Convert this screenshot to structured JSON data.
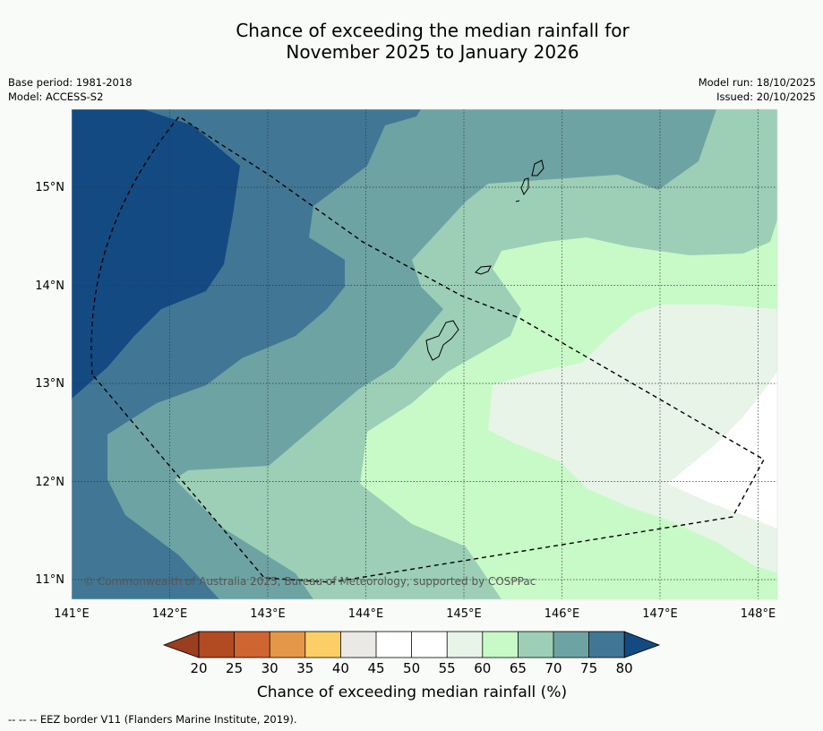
{
  "title_line1": "Chance of exceeding the median rainfall for",
  "title_line2": "November 2025 to January 2026",
  "base_period": "Base period: 1981-2018",
  "model": "Model: ACCESS-S2",
  "model_run": "Model run: 18/10/2025",
  "issued": "Issued: 20/10/2025",
  "copyright": "© Commonwealth of Australia 2025, Bureau of Meteorology, supported by COSPPac",
  "lon_labels": [
    "141°E",
    "142°E",
    "143°E",
    "144°E",
    "145°E",
    "146°E",
    "147°E",
    "148°E"
  ],
  "lat_labels": [
    "15°N",
    "14°N",
    "13°N",
    "12°N",
    "11°N"
  ],
  "colorbar": {
    "ticks": [
      "20",
      "25",
      "30",
      "35",
      "40",
      "45",
      "50",
      "55",
      "60",
      "65",
      "70",
      "75",
      "80"
    ],
    "colors": {
      "under": "#9b3e1f",
      "c20_25": "#b24a22",
      "c25_30": "#cf6530",
      "c30_35": "#e49649",
      "c35_40": "#fccf66",
      "c40_45": "#eae9e6",
      "c45_50": "#ffffff",
      "c50_55": "#ffffff",
      "c55_60": "#e8f4e8",
      "c60_65": "#c8fac8",
      "c65_70": "#9ccfb6",
      "c70_75": "#6ea3a4",
      "c75_80": "#417795",
      "over": "#144a82"
    },
    "label": "Chance of exceeding median rainfall (%)"
  },
  "legend_note": "--  --  -- EEZ border V11 (Flanders Marine Institute, 2019)."
}
